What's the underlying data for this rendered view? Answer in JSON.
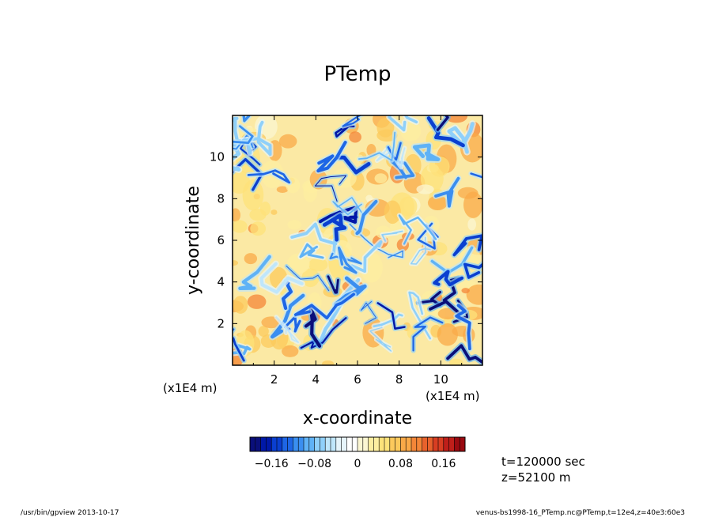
{
  "chart_data": {
    "type": "heatmap",
    "title": "PTemp",
    "xlabel": "x-coordinate",
    "ylabel": "y-coordinate",
    "x_unit_label": "(x1E4 m)",
    "y_unit_label": "(x1E4 m)",
    "xlim": [
      0,
      12
    ],
    "ylim": [
      0,
      12
    ],
    "x_ticks": [
      "2",
      "4",
      "6",
      "8",
      "10"
    ],
    "y_ticks": [
      "2",
      "4",
      "6",
      "8",
      "10"
    ],
    "colorbar": {
      "range": [
        -0.2,
        0.2
      ],
      "ticks": [
        "−0.16",
        "−0.08",
        "0",
        "0.08",
        "0.16"
      ],
      "colors": [
        "#0a0f7a",
        "#0018a8",
        "#0a3fd0",
        "#1e66e6",
        "#3a8ef0",
        "#5fb2f6",
        "#8fd0fa",
        "#bfe6fb",
        "#e6f4fa",
        "#ffffff",
        "#fbf6d2",
        "#fdeea0",
        "#fde27a",
        "#fcc95c",
        "#f9a948",
        "#f48638",
        "#e8622c",
        "#d83e22",
        "#bf1f1a",
        "#9a0a10"
      ]
    },
    "field_description_values": {
      "background_level": 0.04,
      "min_level": -0.2,
      "max_level": 0.1
    }
  },
  "info": {
    "time": "t=120000 sec",
    "height": "z=52100 m"
  },
  "footer": {
    "left": "/usr/bin/gpview   2013-10-17",
    "right": "venus-bs1998-16_PTemp.nc@PTemp,t=12e4,z=40e3:60e3"
  }
}
